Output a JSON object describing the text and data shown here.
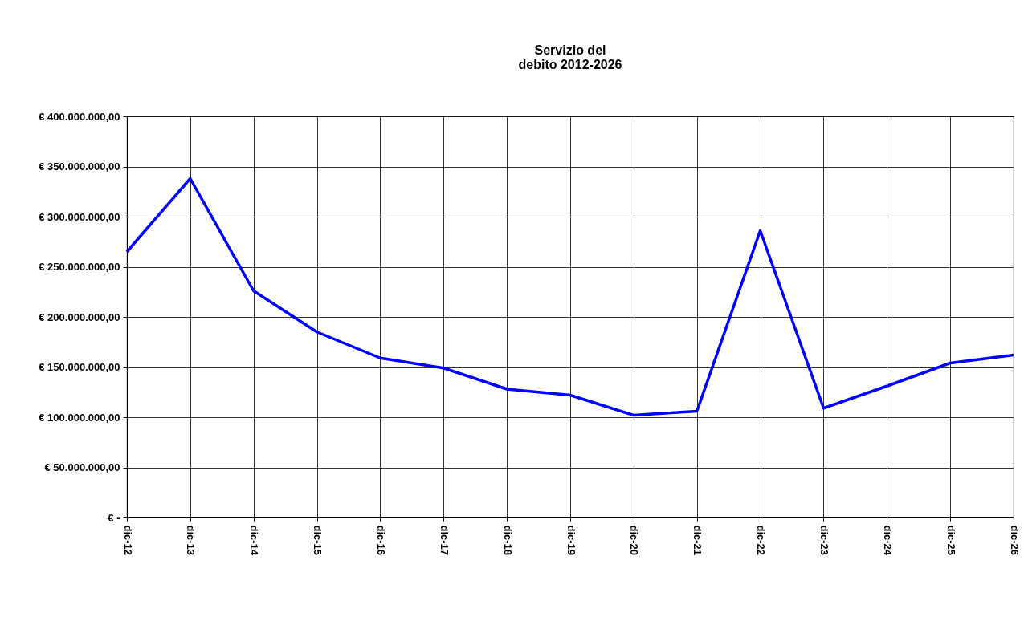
{
  "chart_data": {
    "type": "line",
    "title": "Servizio del\ndebito 2012-2026",
    "categories": [
      "dic-12",
      "dic-13",
      "dic-14",
      "dic-15",
      "dic-16",
      "dic-17",
      "dic-18",
      "dic-19",
      "dic-20",
      "dic-21",
      "dic-22",
      "dic-23",
      "dic-24",
      "dic-25",
      "dic-26"
    ],
    "series": [
      {
        "color": "#0000ff",
        "values": [
          265000000,
          338000000,
          226000000,
          185000000,
          159000000,
          149000000,
          128000000,
          122000000,
          102000000,
          106000000,
          286000000,
          109000000,
          131000000,
          154000000,
          162000000
        ]
      }
    ],
    "ylim": [
      0,
      400000000
    ],
    "yticks": [
      {
        "value": 0,
        "label": "€ -"
      },
      {
        "value": 50000000,
        "label": "€ 50.000.000,00"
      },
      {
        "value": 100000000,
        "label": "€ 100.000.000,00"
      },
      {
        "value": 150000000,
        "label": "€ 150.000.000,00"
      },
      {
        "value": 200000000,
        "label": "€ 200.000.000,00"
      },
      {
        "value": 250000000,
        "label": "€ 250.000.000,00"
      },
      {
        "value": 300000000,
        "label": "€ 300.000.000,00"
      },
      {
        "value": 350000000,
        "label": "€ 350.000.000,00"
      },
      {
        "value": 400000000,
        "label": "€ 400.000.000,00"
      }
    ],
    "grid": true,
    "marker": "none",
    "line_style": "solid",
    "legend": false
  }
}
